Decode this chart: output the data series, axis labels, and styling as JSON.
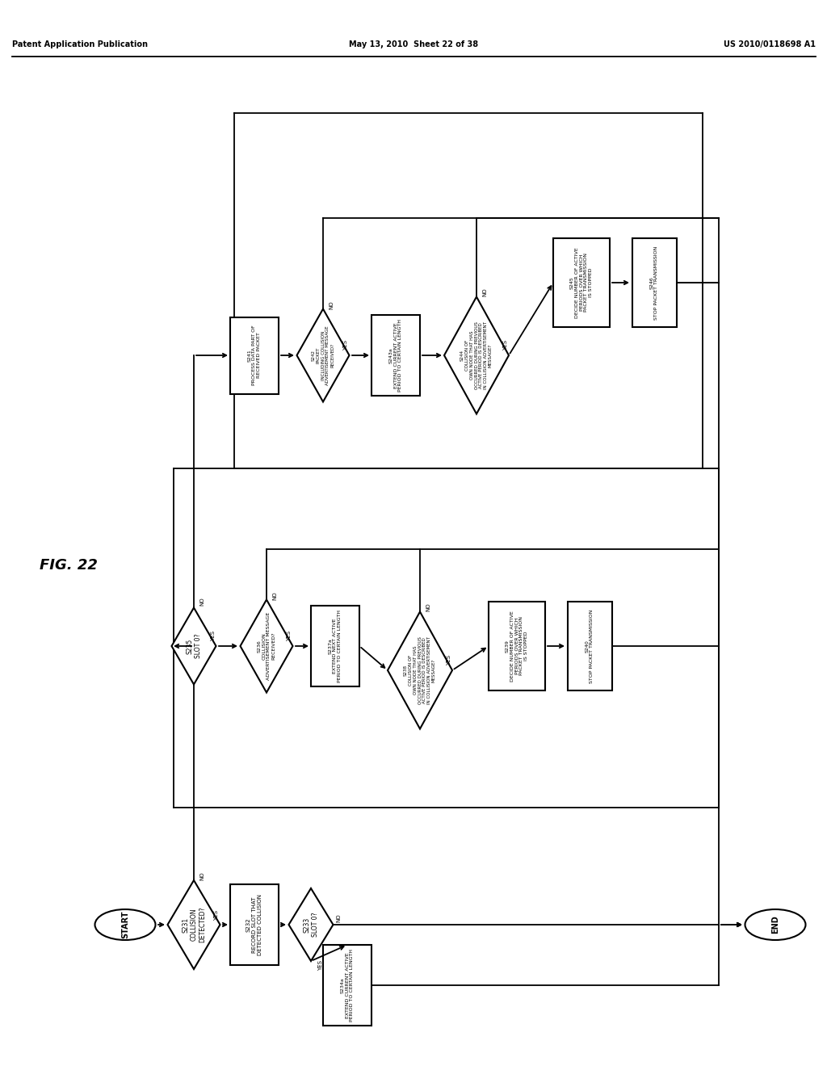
{
  "title_left": "Patent Application Publication",
  "title_center": "May 13, 2010  Sheet 22 of 38",
  "title_right": "US 2010/0118698 A1",
  "fig_label": "FIG. 22",
  "background": "#ffffff",
  "line_color": "#000000"
}
